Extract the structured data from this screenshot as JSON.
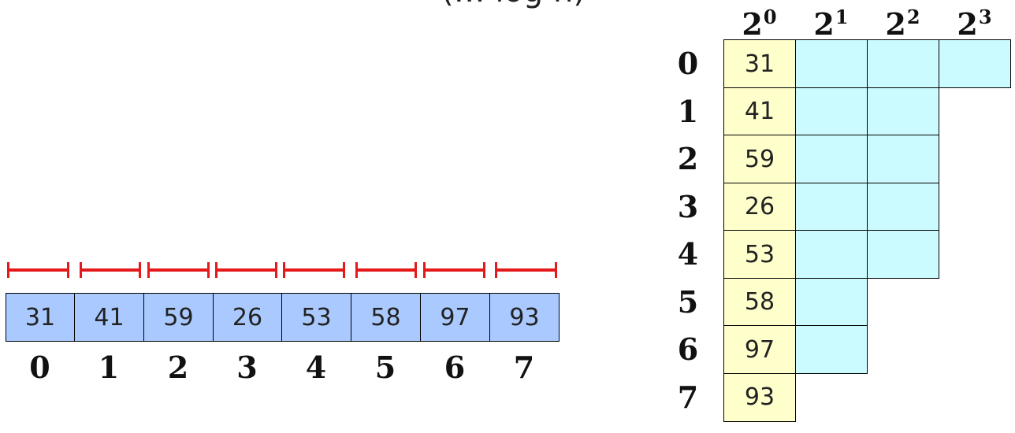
{
  "title_fragment": "(… log n)",
  "array": {
    "values": [
      "31",
      "41",
      "59",
      "26",
      "53",
      "58",
      "97",
      "93"
    ],
    "indices": [
      "0",
      "1",
      "2",
      "3",
      "4",
      "5",
      "6",
      "7"
    ]
  },
  "table": {
    "row_labels": [
      "0",
      "1",
      "2",
      "3",
      "4",
      "5",
      "6",
      "7"
    ],
    "col_headers": [
      {
        "base": "2",
        "exp": "0"
      },
      {
        "base": "2",
        "exp": "1"
      },
      {
        "base": "2",
        "exp": "2"
      },
      {
        "base": "2",
        "exp": "3"
      }
    ],
    "first_column": [
      "31",
      "41",
      "59",
      "26",
      "53",
      "58",
      "97",
      "93"
    ],
    "row_lengths": [
      4,
      3,
      3,
      3,
      3,
      2,
      2,
      1
    ]
  },
  "colors": {
    "array_cell": "#a9c9ff",
    "first_column": "#ffffcc",
    "other_columns": "#ccfbff",
    "segments": "#e41a1a"
  }
}
